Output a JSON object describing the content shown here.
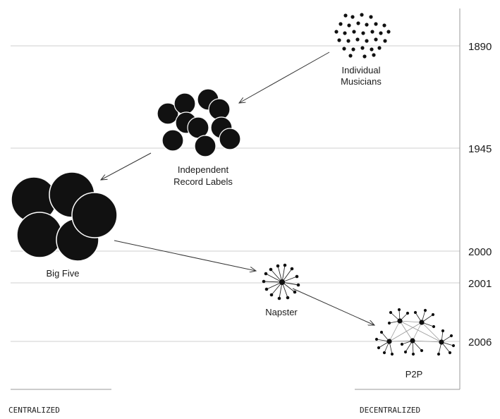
{
  "years": [
    "1890",
    "1945",
    "2000",
    "2001",
    "2006"
  ],
  "nodes": {
    "individual_musicians": [
      "Individual",
      "Musicians"
    ],
    "independent_labels": [
      "Independent",
      "Record Labels"
    ],
    "big_five": "Big Five",
    "napster": "Napster",
    "p2p": "P2P"
  },
  "axis": {
    "left": "CENTRALIZED",
    "right": "DECENTRALIZED"
  },
  "colors": {
    "ink": "#111111",
    "grid": "#cfcfcf",
    "arrow": "#333333"
  }
}
